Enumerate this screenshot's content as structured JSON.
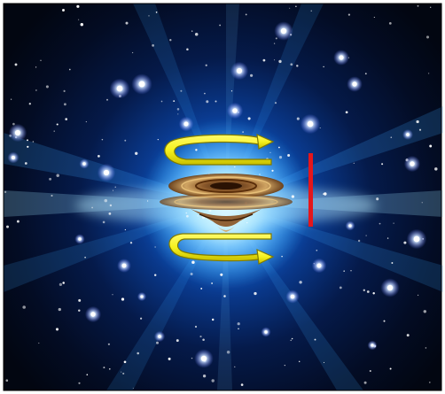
{
  "scene": {
    "subject": "cosmic-vortex-illustration",
    "colors": {
      "space_dark": "#020611",
      "space_deep": "#031434",
      "glow_core": "#e9fbff",
      "glow_blue": "#2b9dff",
      "arrow_yellow": "#f6f21e",
      "arrow_outline": "#7f7a00",
      "marker_red": "#e4161b",
      "vortex_brown": "#6b3d14",
      "vortex_gold": "#d4a25a"
    },
    "icons": [
      "rotation-arrow-icon",
      "vortex-icon",
      "height-marker-icon",
      "star-icon"
    ]
  }
}
